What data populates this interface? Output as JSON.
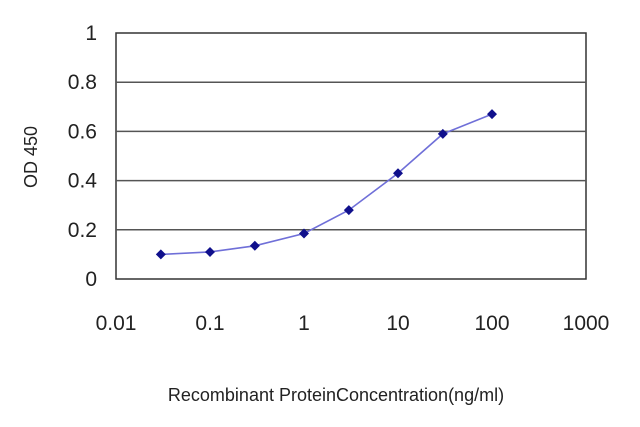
{
  "chart_data": {
    "type": "line",
    "title": "",
    "xlabel": "Recombinant ProteinConcentration(ng/ml)",
    "ylabel": "OD 450",
    "x_scale": "log",
    "xlim": [
      0.01,
      1000
    ],
    "ylim": [
      0,
      1
    ],
    "x_ticks": [
      "0.01",
      "0.1",
      "1",
      "10",
      "100",
      "1000"
    ],
    "y_ticks": [
      "0",
      "0.2",
      "0.4",
      "0.6",
      "0.8",
      "1"
    ],
    "grid": "horizontal",
    "legend": "none",
    "series": [
      {
        "x": [
          0.03,
          0.1,
          0.3,
          1,
          3,
          10,
          30,
          100
        ],
        "y": [
          0.1,
          0.11,
          0.135,
          0.185,
          0.28,
          0.43,
          0.59,
          0.67
        ]
      }
    ],
    "colors": {
      "line": "#6f6fd8",
      "marker": "#10108c",
      "plot_border": "#333333",
      "grid": "#555555"
    }
  }
}
